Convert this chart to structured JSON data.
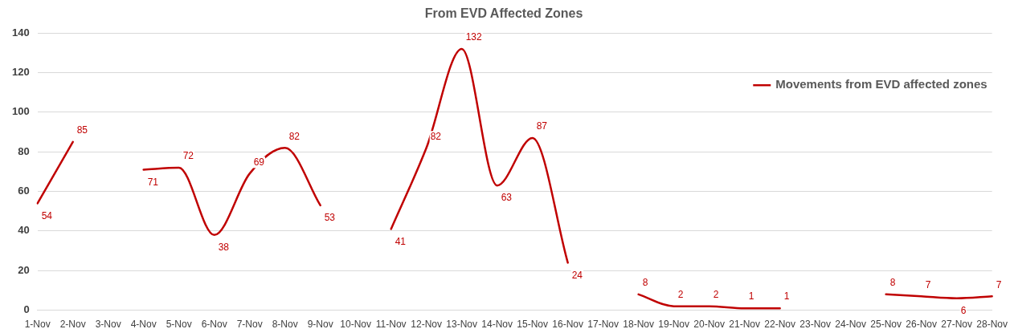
{
  "chart_data": {
    "type": "line",
    "title": "From EVD Affected Zones",
    "categories": [
      "1-Nov",
      "2-Nov",
      "3-Nov",
      "4-Nov",
      "5-Nov",
      "6-Nov",
      "7-Nov",
      "8-Nov",
      "9-Nov",
      "10-Nov",
      "11-Nov",
      "12-Nov",
      "13-Nov",
      "14-Nov",
      "15-Nov",
      "16-Nov",
      "17-Nov",
      "18-Nov",
      "19-Nov",
      "20-Nov",
      "21-Nov",
      "22-Nov",
      "23-Nov",
      "24-Nov",
      "25-Nov",
      "26-Nov",
      "27-Nov",
      "28-Nov"
    ],
    "series": [
      {
        "name": "Movements from EVD affected zones",
        "color": "#c00000",
        "values": [
          54,
          85,
          null,
          71,
          72,
          38,
          69,
          82,
          53,
          null,
          41,
          82,
          132,
          63,
          87,
          24,
          null,
          8,
          2,
          2,
          1,
          1,
          null,
          null,
          8,
          7,
          6,
          7
        ]
      }
    ],
    "ylim": [
      0,
      140
    ],
    "yticks": [
      0,
      20,
      40,
      60,
      80,
      100,
      120,
      140
    ],
    "grid": "y",
    "legend": "top right",
    "data_labels": true,
    "marker": "none",
    "line_style": "solid"
  }
}
